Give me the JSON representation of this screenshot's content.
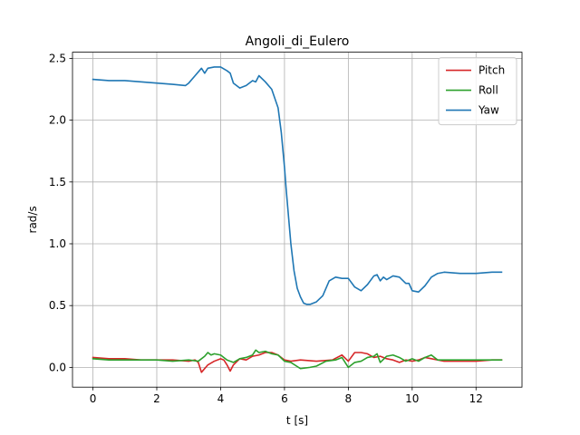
{
  "chart_data": {
    "type": "line",
    "title": "Angoli_di_Eulero",
    "xlabel": "t [s]",
    "ylabel": "rad/s",
    "xlim": [
      -0.64,
      13.44
    ],
    "ylim": [
      -0.16,
      2.55
    ],
    "xticks": [
      0,
      2,
      4,
      6,
      8,
      10,
      12
    ],
    "yticks": [
      0.0,
      0.5,
      1.0,
      1.5,
      2.0,
      2.5
    ],
    "xtick_labels": [
      "0",
      "2",
      "4",
      "6",
      "8",
      "10",
      "12"
    ],
    "ytick_labels": [
      "0.0",
      "0.5",
      "1.0",
      "1.5",
      "2.0",
      "2.5"
    ],
    "grid": true,
    "legend_position": "top-right",
    "series": [
      {
        "name": "Pitch",
        "color": "#d62728",
        "x": [
          0,
          0.5,
          1.0,
          1.5,
          2.0,
          2.5,
          3.0,
          3.2,
          3.3,
          3.4,
          3.6,
          3.8,
          4.0,
          4.1,
          4.2,
          4.3,
          4.4,
          4.6,
          4.8,
          5.0,
          5.2,
          5.4,
          5.6,
          5.8,
          6.0,
          6.2,
          6.5,
          7.0,
          7.5,
          7.8,
          8.0,
          8.2,
          8.4,
          8.6,
          8.8,
          9.0,
          9.2,
          9.4,
          9.6,
          9.8,
          10.0,
          10.2,
          10.4,
          10.6,
          10.8,
          11.0,
          11.5,
          12.0,
          12.5,
          12.8
        ],
        "values": [
          0.08,
          0.07,
          0.07,
          0.06,
          0.06,
          0.06,
          0.05,
          0.06,
          0.04,
          -0.04,
          0.02,
          0.05,
          0.07,
          0.06,
          0.02,
          -0.03,
          0.02,
          0.07,
          0.06,
          0.09,
          0.1,
          0.12,
          0.12,
          0.1,
          0.06,
          0.05,
          0.06,
          0.05,
          0.06,
          0.1,
          0.05,
          0.12,
          0.12,
          0.11,
          0.08,
          0.09,
          0.07,
          0.06,
          0.04,
          0.06,
          0.05,
          0.06,
          0.08,
          0.07,
          0.06,
          0.05,
          0.05,
          0.05,
          0.06,
          0.06
        ]
      },
      {
        "name": "Roll",
        "color": "#2ca02c",
        "x": [
          0,
          0.5,
          1.0,
          1.5,
          2.0,
          2.5,
          3.0,
          3.3,
          3.5,
          3.6,
          3.7,
          3.8,
          4.0,
          4.2,
          4.4,
          4.6,
          4.8,
          5.0,
          5.1,
          5.2,
          5.4,
          5.6,
          5.8,
          6.0,
          6.2,
          6.5,
          6.8,
          7.0,
          7.3,
          7.6,
          7.8,
          8.0,
          8.2,
          8.4,
          8.6,
          8.8,
          8.9,
          9.0,
          9.2,
          9.4,
          9.6,
          9.8,
          10.0,
          10.2,
          10.4,
          10.6,
          10.8,
          11.0,
          11.5,
          12.0,
          12.5,
          12.8
        ],
        "values": [
          0.07,
          0.06,
          0.06,
          0.06,
          0.06,
          0.05,
          0.06,
          0.05,
          0.09,
          0.12,
          0.1,
          0.11,
          0.1,
          0.06,
          0.04,
          0.07,
          0.08,
          0.1,
          0.14,
          0.12,
          0.13,
          0.11,
          0.1,
          0.05,
          0.04,
          -0.01,
          0.0,
          0.01,
          0.05,
          0.06,
          0.08,
          0.0,
          0.04,
          0.05,
          0.08,
          0.09,
          0.11,
          0.04,
          0.09,
          0.1,
          0.08,
          0.05,
          0.07,
          0.05,
          0.08,
          0.1,
          0.06,
          0.06,
          0.06,
          0.06,
          0.06,
          0.06
        ]
      },
      {
        "name": "Yaw",
        "color": "#1f77b4",
        "x": [
          0,
          0.5,
          1.0,
          1.5,
          2.0,
          2.5,
          2.9,
          3.0,
          3.2,
          3.4,
          3.5,
          3.6,
          3.8,
          4.0,
          4.2,
          4.3,
          4.4,
          4.6,
          4.8,
          5.0,
          5.1,
          5.2,
          5.4,
          5.6,
          5.8,
          5.9,
          6.0,
          6.05,
          6.1,
          6.2,
          6.3,
          6.4,
          6.5,
          6.6,
          6.7,
          6.8,
          7.0,
          7.2,
          7.4,
          7.6,
          7.8,
          8.0,
          8.2,
          8.4,
          8.6,
          8.8,
          8.9,
          9.0,
          9.1,
          9.2,
          9.4,
          9.6,
          9.8,
          9.9,
          10.0,
          10.2,
          10.4,
          10.6,
          10.8,
          11.0,
          11.5,
          12.0,
          12.5,
          12.8
        ],
        "values": [
          2.33,
          2.32,
          2.32,
          2.31,
          2.3,
          2.29,
          2.28,
          2.3,
          2.36,
          2.42,
          2.38,
          2.42,
          2.43,
          2.43,
          2.4,
          2.38,
          2.3,
          2.26,
          2.28,
          2.32,
          2.31,
          2.36,
          2.31,
          2.25,
          2.1,
          1.9,
          1.62,
          1.45,
          1.3,
          1.0,
          0.78,
          0.64,
          0.57,
          0.52,
          0.51,
          0.51,
          0.53,
          0.58,
          0.7,
          0.73,
          0.72,
          0.72,
          0.65,
          0.62,
          0.67,
          0.74,
          0.75,
          0.7,
          0.73,
          0.71,
          0.74,
          0.73,
          0.68,
          0.68,
          0.62,
          0.61,
          0.66,
          0.73,
          0.76,
          0.77,
          0.76,
          0.76,
          0.77,
          0.77
        ]
      }
    ]
  }
}
